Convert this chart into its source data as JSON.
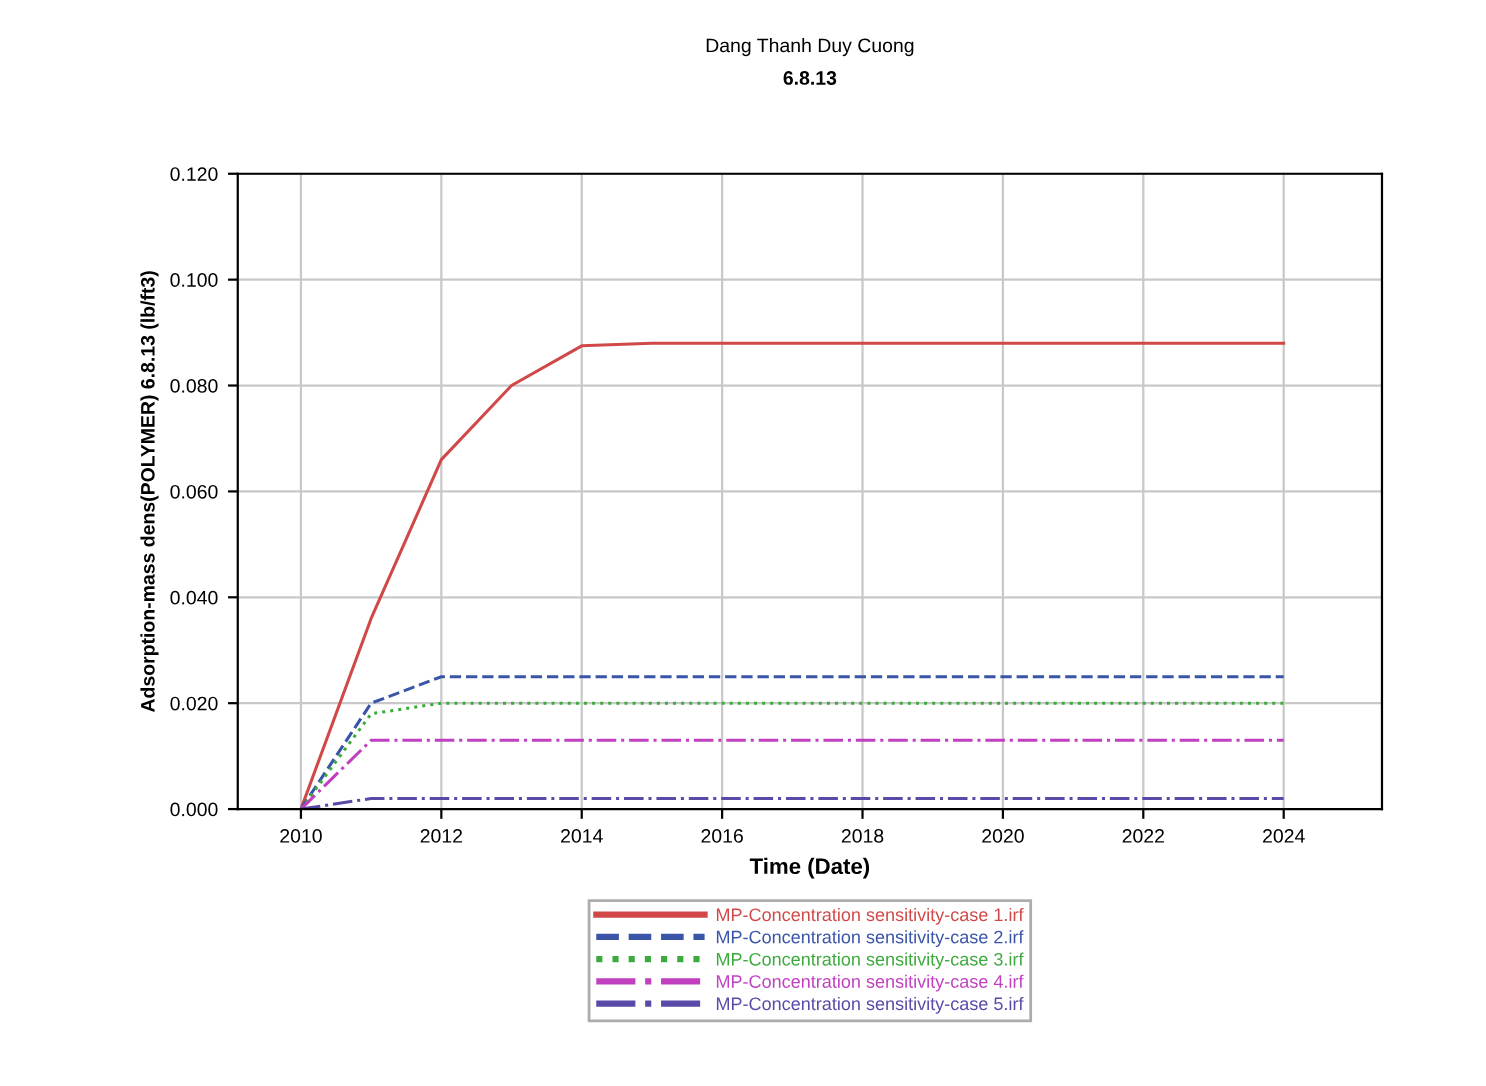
{
  "chart_data": {
    "type": "line",
    "title": "Dang Thanh Duy Cuong",
    "subtitle": "6.8.13",
    "xlabel": "Time (Date)",
    "ylabel": "Adsorption-mass dens(POLYMER) 6.8.13 (lb/ft3)",
    "x": [
      2010,
      2011,
      2012,
      2013,
      2014,
      2015,
      2016,
      2017,
      2018,
      2019,
      2020,
      2021,
      2022,
      2023,
      2024
    ],
    "series": [
      {
        "name": "MP-Concentration sensitivity-case 1.irf",
        "color": "#d04848",
        "line_style": "solid",
        "values": [
          0,
          0.036,
          0.066,
          0.08,
          0.0875,
          0.088,
          0.088,
          0.088,
          0.088,
          0.088,
          0.088,
          0.088,
          0.088,
          0.088,
          0.088
        ]
      },
      {
        "name": "MP-Concentration sensitivity-case 2.irf",
        "color": "#3a55a8",
        "line_style": "dashed",
        "values": [
          0,
          0.02,
          0.025,
          0.025,
          0.025,
          0.025,
          0.025,
          0.025,
          0.025,
          0.025,
          0.025,
          0.025,
          0.025,
          0.025,
          0.025
        ]
      },
      {
        "name": "MP-Concentration sensitivity-case 3.irf",
        "color": "#3caa3c",
        "line_style": "dotted",
        "values": [
          0,
          0.018,
          0.02,
          0.02,
          0.02,
          0.02,
          0.02,
          0.02,
          0.02,
          0.02,
          0.02,
          0.02,
          0.02,
          0.02,
          0.02
        ]
      },
      {
        "name": "MP-Concentration sensitivity-case 4.irf",
        "color": "#c040c0",
        "line_style": "dashdot",
        "values": [
          0,
          0.013,
          0.013,
          0.013,
          0.013,
          0.013,
          0.013,
          0.013,
          0.013,
          0.013,
          0.013,
          0.013,
          0.013,
          0.013,
          0.013
        ]
      },
      {
        "name": "MP-Concentration sensitivity-case 5.irf",
        "color": "#5a4aa8",
        "line_style": "dashdot",
        "values": [
          0,
          0.002,
          0.002,
          0.002,
          0.002,
          0.002,
          0.002,
          0.002,
          0.002,
          0.002,
          0.002,
          0.002,
          0.002,
          0.002,
          0.002
        ]
      }
    ],
    "xlim": [
      2009.1,
      2025.4
    ],
    "xticks": [
      2010,
      2012,
      2014,
      2016,
      2018,
      2020,
      2022,
      2024
    ],
    "ylim": [
      0,
      0.12
    ],
    "yticks": [
      {
        "value": 0,
        "label": "0.000"
      },
      {
        "value": 0.02,
        "label": "0.020"
      },
      {
        "value": 0.04,
        "label": "0.040"
      },
      {
        "value": 0.06,
        "label": "0.060"
      },
      {
        "value": 0.08,
        "label": "0.080"
      },
      {
        "value": 0.1,
        "label": "0.100"
      },
      {
        "value": 0.12,
        "label": "0.120"
      }
    ],
    "grid": true,
    "legend": "bottom",
    "marker": "none"
  }
}
